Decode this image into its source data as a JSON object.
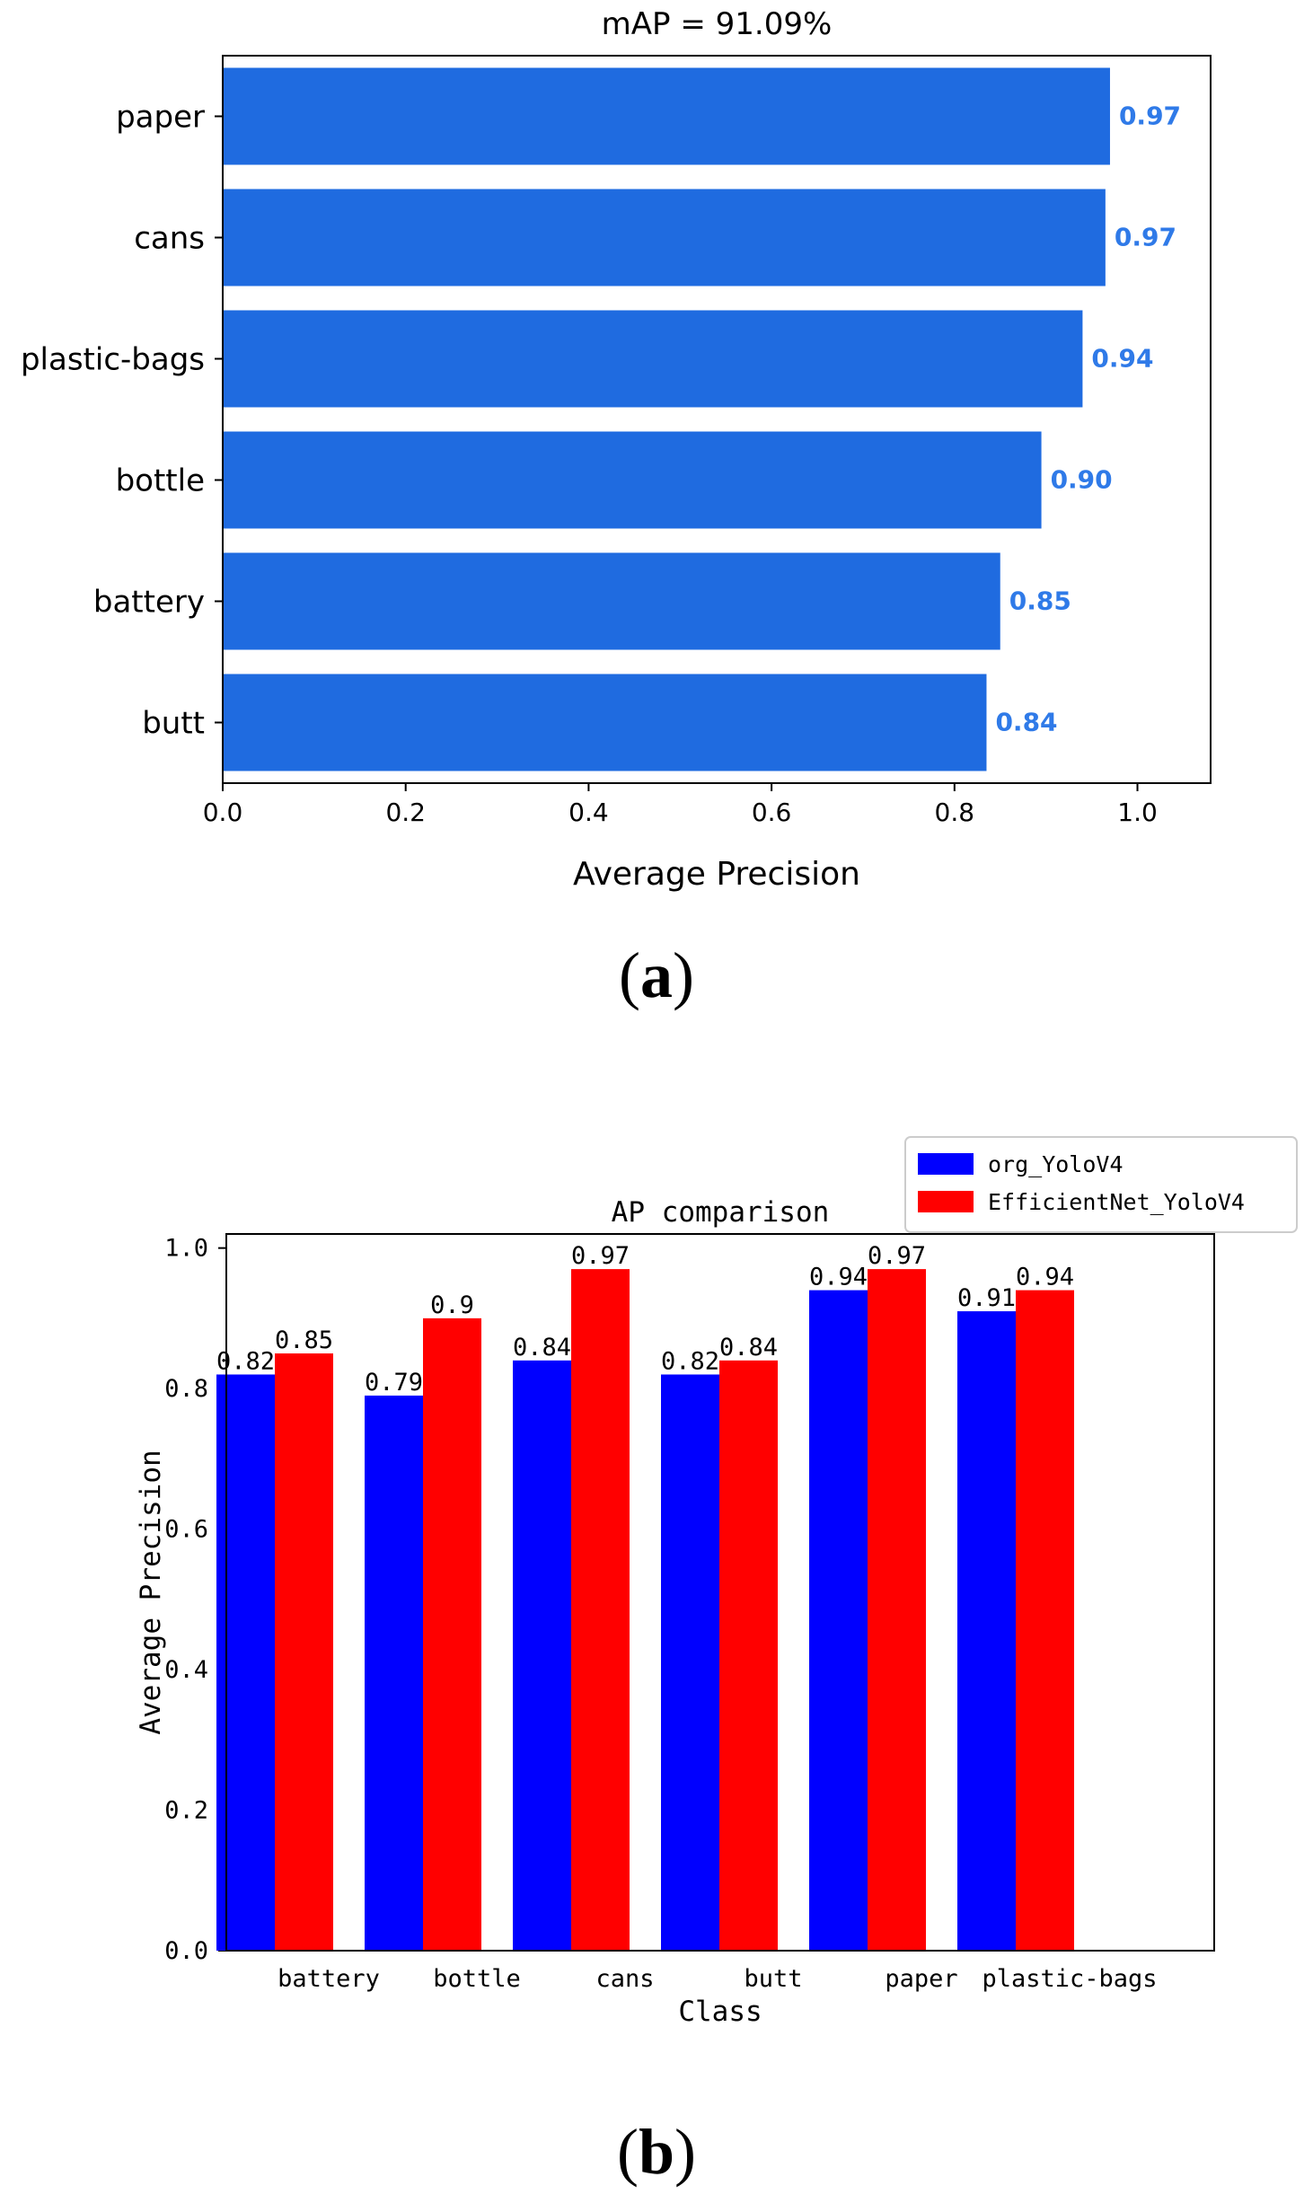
{
  "chart_data": [
    {
      "type": "bar",
      "orientation": "horizontal",
      "title": "mAP = 91.09%",
      "categories": [
        "paper",
        "cans",
        "plastic-bags",
        "bottle",
        "battery",
        "butt"
      ],
      "values": [
        0.97,
        0.965,
        0.94,
        0.895,
        0.85,
        0.835
      ],
      "data_labels": [
        "0.97",
        "0.97",
        "0.94",
        "0.90",
        "0.85",
        "0.84"
      ],
      "xlabel": "Average Precision",
      "ylabel": "",
      "xlim": [
        0,
        1.08
      ],
      "xticks": [
        "0.0",
        "0.2",
        "0.4",
        "0.6",
        "0.8",
        "1.0"
      ],
      "bar_color": "#1f6be0",
      "label_color": "#2f7ae8",
      "grid": false,
      "panel_label": "a"
    },
    {
      "type": "bar",
      "orientation": "vertical",
      "title": "AP comparison",
      "categories": [
        "battery",
        "bottle",
        "cans",
        "butt",
        "paper",
        "plastic-bags"
      ],
      "series": [
        {
          "name": "org_YoloV4",
          "color": "#0000ff",
          "values": [
            0.82,
            0.79,
            0.84,
            0.82,
            0.94,
            0.91
          ],
          "labels": [
            "0.82",
            "0.79",
            "0.84",
            "0.82",
            "0.94",
            "0.91"
          ]
        },
        {
          "name": "EfficientNet_YoloV4",
          "color": "#ff0000",
          "values": [
            0.85,
            0.9,
            0.97,
            0.84,
            0.97,
            0.94
          ],
          "labels": [
            "0.85",
            "0.9",
            "0.97",
            "0.84",
            "0.97",
            "0.94"
          ]
        }
      ],
      "xlabel": "Class",
      "ylabel": "Average Precision",
      "ylim": [
        0,
        1.02
      ],
      "yticks": [
        "0.0",
        "0.2",
        "0.4",
        "0.6",
        "0.8",
        "1.0"
      ],
      "legend_position": "top-right",
      "grid": false,
      "panel_label": "b"
    }
  ]
}
